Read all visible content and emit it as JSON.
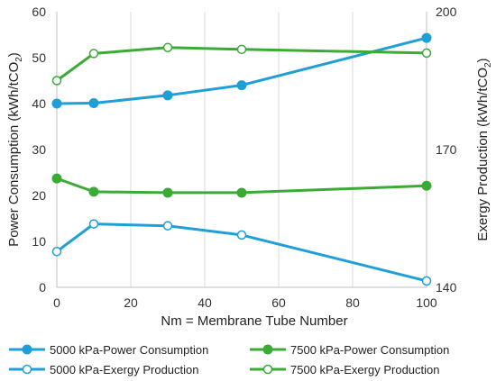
{
  "chart_data": {
    "type": "line",
    "title": "",
    "xlabel": "Nm = Membrane Tube Number",
    "ylabel_left": "Power Consumption (kWh/tCO",
    "ylabel_left_sub": "2",
    "ylabel_left_end": ")",
    "ylabel_right": "Exergy Production (kWh/tCO",
    "ylabel_right_sub": "2",
    "ylabel_right_end": ")",
    "xlim": [
      0,
      100
    ],
    "ylim_left": [
      0,
      60
    ],
    "ylim_right": [
      140,
      200
    ],
    "x_ticks": [
      "0",
      "20",
      "40",
      "60",
      "80",
      "100"
    ],
    "y_left_ticks": [
      "0",
      "10",
      "20",
      "30",
      "40",
      "50",
      "60"
    ],
    "y_right_ticks": [
      "140",
      "170",
      "200"
    ],
    "grid": "vertical",
    "legend_position": "bottom",
    "series": [
      {
        "name": "5000 kPa-Power Consumption",
        "axis": "left",
        "color": "#1f9fd8",
        "marker": "filled",
        "x": [
          0,
          10,
          30,
          50,
          100
        ],
        "y": [
          40,
          40.1,
          41.8,
          44,
          54.3
        ]
      },
      {
        "name": "7500 kPa-Power Consumption",
        "axis": "left",
        "color": "#3aab35",
        "marker": "filled",
        "x": [
          0,
          10,
          30,
          50,
          100
        ],
        "y": [
          23.7,
          20.8,
          20.6,
          20.6,
          22.1
        ]
      },
      {
        "name": "5000 kPa-Exergy Production",
        "axis": "right",
        "color": "#1f9fd8",
        "marker": "hollow",
        "x": [
          0,
          10,
          30,
          50,
          100
        ],
        "y": [
          147.8,
          153.8,
          153.4,
          151.4,
          141.4
        ]
      },
      {
        "name": "7500 kPa-Exergy Production",
        "axis": "right",
        "color": "#3aab35",
        "marker": "hollow",
        "x": [
          0,
          10,
          30,
          50,
          100
        ],
        "y": [
          185,
          190.9,
          192.2,
          191.8,
          191
        ]
      }
    ]
  }
}
